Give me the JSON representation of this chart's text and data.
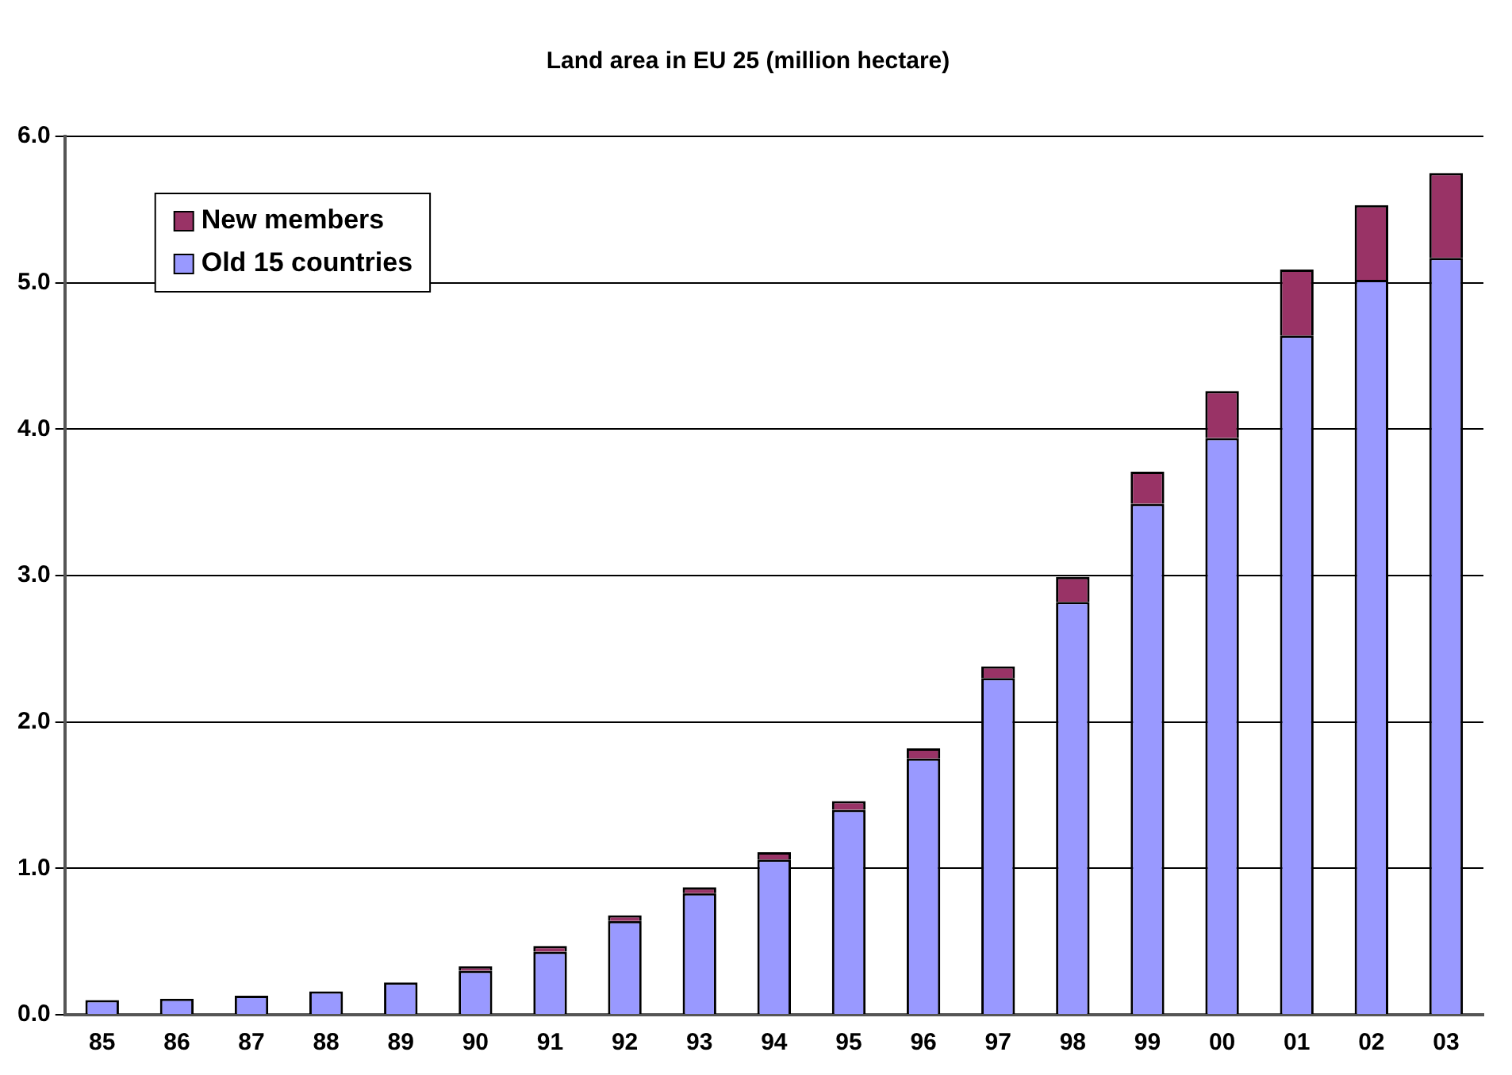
{
  "chart_data": {
    "type": "bar",
    "title": "Land area in EU 25 (million hectare)",
    "stacked": true,
    "categories": [
      "85",
      "86",
      "87",
      "88",
      "89",
      "90",
      "91",
      "92",
      "93",
      "94",
      "95",
      "96",
      "97",
      "98",
      "99",
      "00",
      "01",
      "02",
      "03"
    ],
    "series": [
      {
        "name": "Old 15 countries",
        "color": "#9999ff",
        "values": [
          0.1,
          0.11,
          0.13,
          0.16,
          0.22,
          0.3,
          0.43,
          0.64,
          0.83,
          1.06,
          1.4,
          1.75,
          2.3,
          2.82,
          3.49,
          3.94,
          4.64,
          5.02,
          5.17
        ]
      },
      {
        "name": "New members",
        "color": "#993366",
        "values": [
          0,
          0,
          0,
          0,
          0,
          0.03,
          0.04,
          0.04,
          0.04,
          0.05,
          0.06,
          0.07,
          0.08,
          0.17,
          0.22,
          0.32,
          0.45,
          0.51,
          0.58
        ]
      }
    ],
    "ylim": [
      0,
      6
    ],
    "yticks": [
      {
        "value": 0,
        "label": "0.0"
      },
      {
        "value": 1,
        "label": "1.0"
      },
      {
        "value": 2,
        "label": "2.0"
      },
      {
        "value": 3,
        "label": "3.0"
      },
      {
        "value": 4,
        "label": "4.0"
      },
      {
        "value": 5,
        "label": "5.0"
      },
      {
        "value": 6,
        "label": "6.0"
      }
    ],
    "grid": "y",
    "legend": "top left"
  }
}
